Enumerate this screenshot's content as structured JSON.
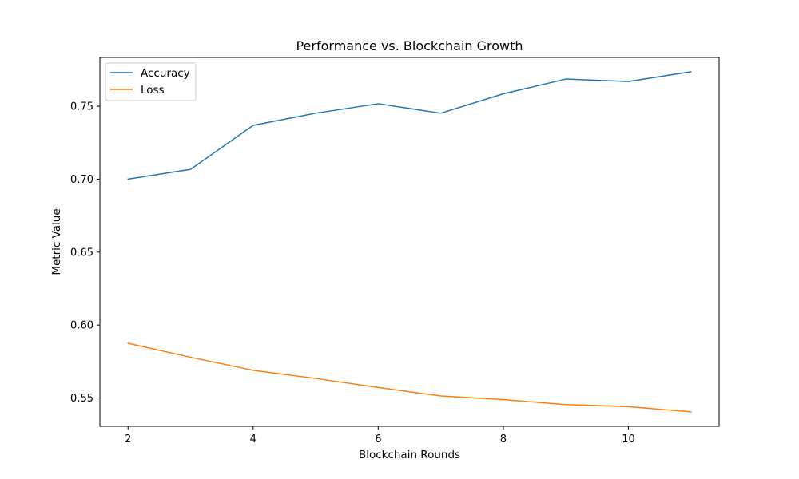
{
  "chart_data": {
    "type": "line",
    "title": "Performance vs. Blockchain Growth",
    "xlabel": "Blockchain Rounds",
    "ylabel": "Metric Value",
    "x": [
      2,
      3,
      4,
      5,
      6,
      7,
      8,
      9,
      10,
      11
    ],
    "xlim": [
      1.55,
      11.45
    ],
    "ylim": [
      0.5306,
      0.7834
    ],
    "xticks": [
      2,
      4,
      6,
      8,
      10
    ],
    "xtick_labels": [
      "2",
      "4",
      "6",
      "8",
      "10"
    ],
    "yticks": [
      0.55,
      0.6,
      0.65,
      0.7,
      0.75
    ],
    "ytick_labels": [
      "0.55",
      "0.60",
      "0.65",
      "0.70",
      "0.75"
    ],
    "grid": false,
    "legend_position": "top-left",
    "series": [
      {
        "name": "Accuracy",
        "color": "#1f77b4",
        "values": [
          0.7,
          0.7067,
          0.7369,
          0.7452,
          0.7517,
          0.7452,
          0.7585,
          0.7686,
          0.7669,
          0.7736
        ]
      },
      {
        "name": "Loss",
        "color": "#ff7f0e",
        "values": [
          0.5875,
          0.5779,
          0.569,
          0.5634,
          0.5572,
          0.5514,
          0.5489,
          0.5455,
          0.5441,
          0.5405
        ]
      }
    ]
  }
}
